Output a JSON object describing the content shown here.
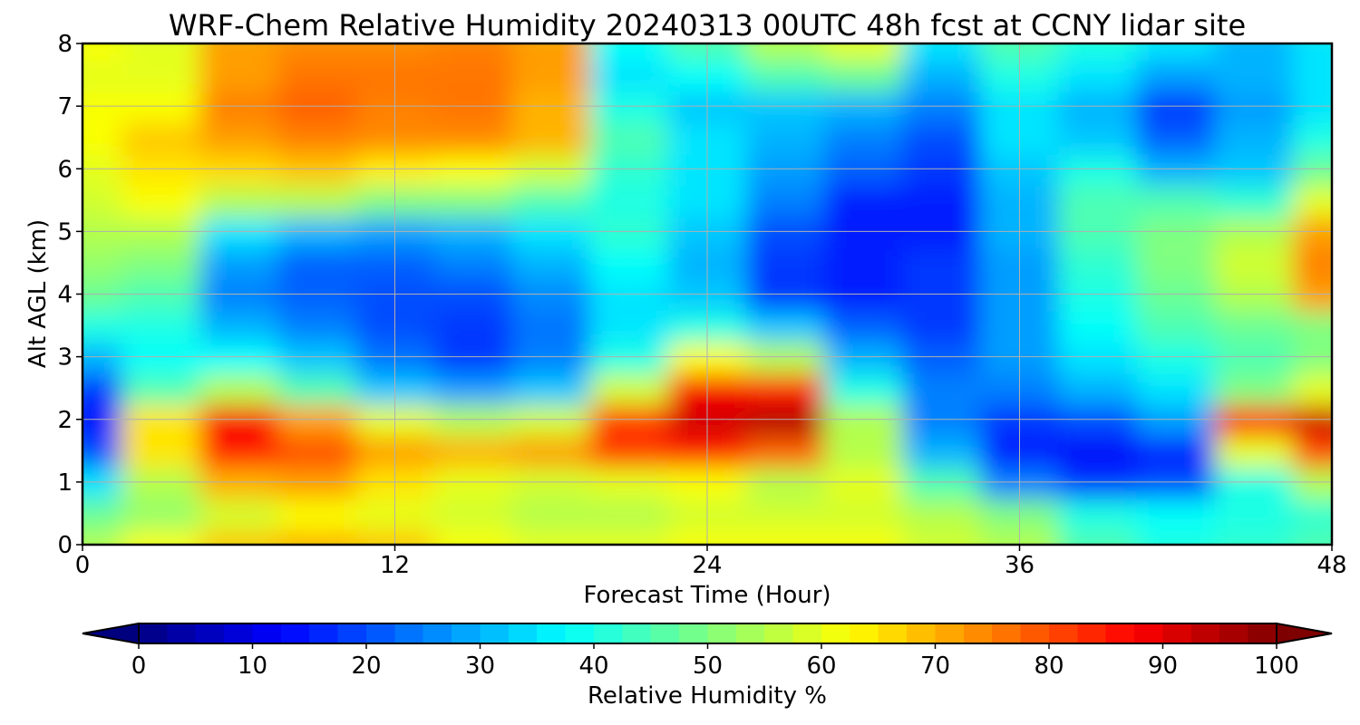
{
  "chart_data": {
    "type": "heatmap",
    "title": "WRF-Chem Relative Humidity 20240313 00UTC 48h fcst at CCNY lidar site",
    "xlabel": "Forecast Time (Hour)",
    "ylabel": "Alt AGL (km)",
    "xlim": [
      0,
      48
    ],
    "ylim": [
      0,
      8
    ],
    "xticks": [
      "0",
      "12",
      "24",
      "36",
      "48"
    ],
    "yticks": [
      "0",
      "1",
      "2",
      "3",
      "4",
      "5",
      "6",
      "7",
      "8"
    ],
    "grid": true,
    "colorbar": {
      "label": "Relative Humidity %",
      "range": [
        0,
        100
      ],
      "ticks": [
        "0",
        "10",
        "20",
        "30",
        "40",
        "50",
        "60",
        "70",
        "80",
        "90",
        "100"
      ],
      "colormap": "jet",
      "extend": "both"
    },
    "x": [
      0,
      3,
      6,
      9,
      12,
      15,
      18,
      21,
      24,
      27,
      30,
      33,
      36,
      39,
      42,
      45,
      48
    ],
    "y": [
      0,
      0.5,
      1,
      1.5,
      2,
      2.5,
      3,
      3.5,
      4,
      4.5,
      5,
      5.5,
      6,
      6.5,
      7,
      7.5,
      8
    ],
    "z": [
      [
        55,
        62,
        68,
        70,
        68,
        62,
        60,
        60,
        62,
        62,
        62,
        58,
        55,
        45,
        40,
        42,
        45
      ],
      [
        48,
        52,
        58,
        62,
        60,
        58,
        55,
        55,
        58,
        58,
        58,
        55,
        50,
        40,
        38,
        40,
        42
      ],
      [
        35,
        55,
        70,
        72,
        65,
        60,
        58,
        60,
        62,
        55,
        60,
        45,
        25,
        18,
        20,
        40,
        55
      ],
      [
        20,
        65,
        85,
        80,
        72,
        70,
        72,
        82,
        85,
        78,
        55,
        30,
        15,
        12,
        15,
        60,
        80
      ],
      [
        14,
        65,
        88,
        72,
        60,
        55,
        58,
        82,
        92,
        95,
        55,
        25,
        18,
        20,
        28,
        85,
        92
      ],
      [
        18,
        45,
        55,
        45,
        32,
        28,
        32,
        58,
        88,
        85,
        40,
        25,
        25,
        30,
        35,
        50,
        60
      ],
      [
        30,
        38,
        38,
        32,
        24,
        18,
        25,
        40,
        62,
        55,
        30,
        22,
        28,
        35,
        40,
        45,
        50
      ],
      [
        40,
        40,
        30,
        25,
        20,
        18,
        24,
        35,
        40,
        32,
        22,
        18,
        28,
        38,
        45,
        48,
        50
      ],
      [
        48,
        45,
        25,
        22,
        20,
        20,
        26,
        35,
        32,
        18,
        15,
        18,
        28,
        40,
        48,
        55,
        72
      ],
      [
        52,
        50,
        28,
        22,
        22,
        25,
        30,
        38,
        30,
        18,
        15,
        18,
        28,
        42,
        50,
        58,
        75
      ],
      [
        55,
        55,
        35,
        30,
        28,
        30,
        35,
        42,
        32,
        20,
        15,
        15,
        30,
        45,
        50,
        55,
        72
      ],
      [
        58,
        62,
        55,
        55,
        50,
        50,
        45,
        40,
        35,
        25,
        15,
        15,
        30,
        45,
        45,
        42,
        60
      ],
      [
        60,
        65,
        66,
        68,
        64,
        62,
        58,
        42,
        35,
        28,
        22,
        18,
        32,
        40,
        30,
        32,
        48
      ],
      [
        62,
        68,
        72,
        75,
        74,
        74,
        70,
        45,
        35,
        30,
        25,
        20,
        35,
        32,
        22,
        30,
        40
      ],
      [
        62,
        62,
        75,
        78,
        75,
        76,
        70,
        40,
        32,
        32,
        30,
        25,
        35,
        30,
        18,
        28,
        35
      ],
      [
        60,
        60,
        72,
        76,
        76,
        76,
        72,
        35,
        38,
        45,
        48,
        30,
        40,
        35,
        28,
        30,
        35
      ],
      [
        62,
        60,
        72,
        74,
        74,
        75,
        72,
        38,
        45,
        55,
        60,
        35,
        45,
        40,
        35,
        30,
        35
      ]
    ]
  }
}
